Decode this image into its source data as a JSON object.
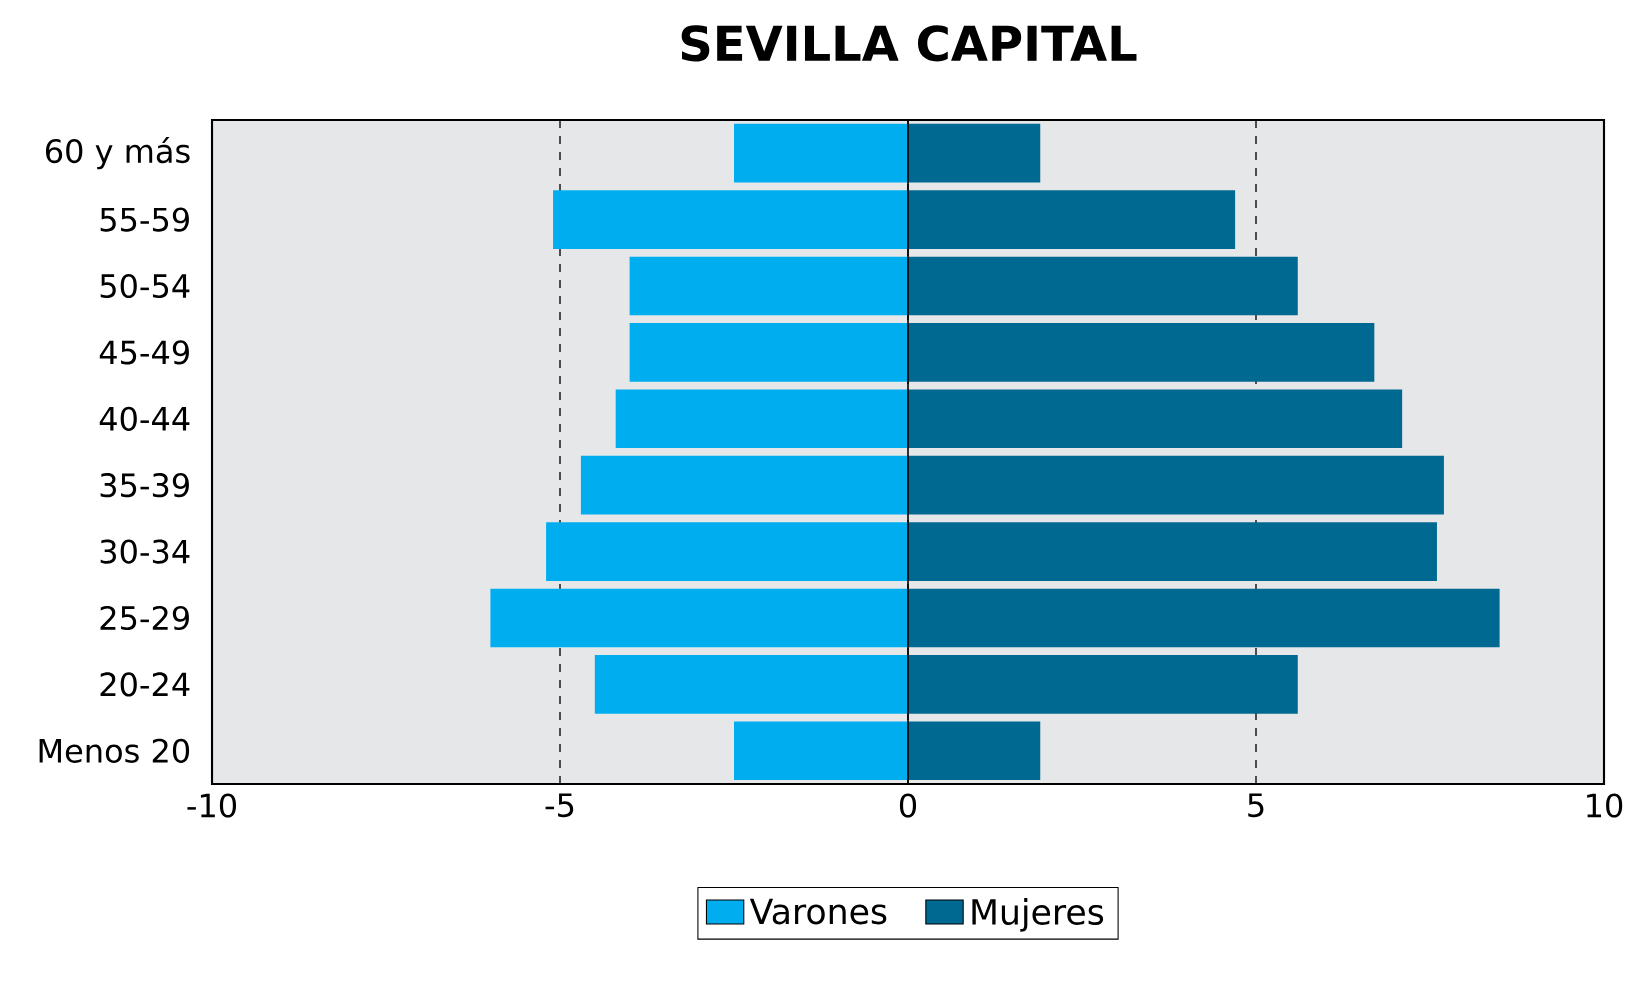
{
  "chart_data": {
    "type": "bar",
    "orientation": "horizontal",
    "stacked": true,
    "title": "SEVILLA CAPITAL",
    "categories": [
      "60 y más",
      "55-59",
      "50-54",
      "45-49",
      "40-44",
      "35-39",
      "30-34",
      "25-29",
      "20-24",
      "Menos 20"
    ],
    "series": [
      {
        "name": "Varones",
        "color": "#00aeef",
        "values": [
          -2.5,
          -5.1,
          -4.0,
          -4.0,
          -4.2,
          -4.7,
          -5.2,
          -6.0,
          -4.5,
          -2.5
        ]
      },
      {
        "name": "Mujeres",
        "color": "#006991",
        "values": [
          1.9,
          4.7,
          5.6,
          6.7,
          7.1,
          7.7,
          7.6,
          8.5,
          5.6,
          1.9
        ]
      }
    ],
    "xlim": [
      -10,
      10
    ],
    "xticks": [
      -10,
      -5,
      0,
      5,
      10
    ],
    "grid": "x",
    "line_style": "dashed",
    "legend": "bottom"
  }
}
